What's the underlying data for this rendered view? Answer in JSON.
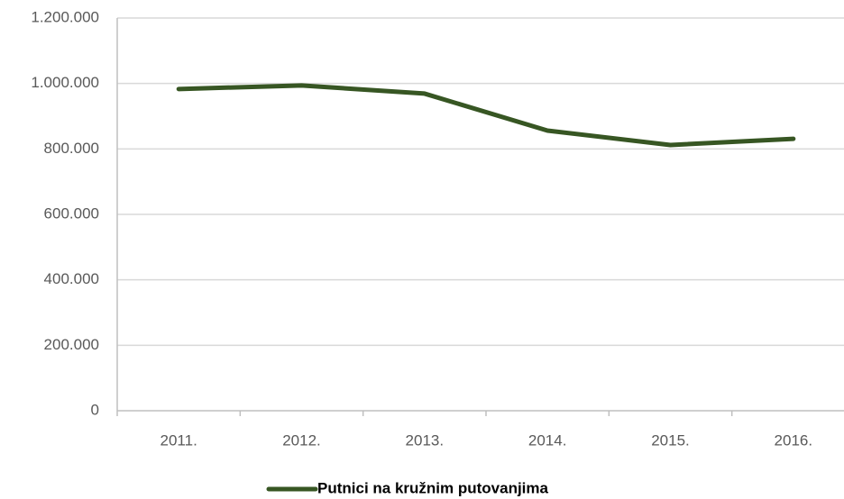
{
  "chart_data": {
    "type": "line",
    "categories": [
      "2011.",
      "2012.",
      "2013.",
      "2014.",
      "2015.",
      "2016."
    ],
    "series": [
      {
        "name": "Putnici na kružnim putovanjima",
        "color": "#375623",
        "values": [
          983000,
          994000,
          969000,
          856000,
          812000,
          831000
        ]
      }
    ],
    "ylim": [
      0,
      1200000
    ],
    "yticks": [
      0,
      {
        "value": 200000,
        "label": "200.000"
      },
      {
        "value": 400000,
        "label": "400.000"
      },
      {
        "value": 600000,
        "label": "600.000"
      },
      {
        "value": 800000,
        "label": "800.000"
      },
      {
        "value": 1000000,
        "label": "1.000.000"
      },
      {
        "value": 1200000,
        "label": "1.200.000"
      }
    ],
    "grid": true,
    "legend": "bottom"
  }
}
